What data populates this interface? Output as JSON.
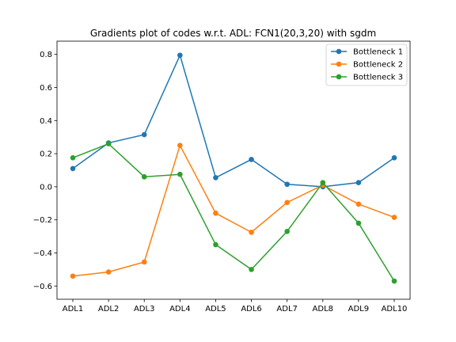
{
  "chart_data": {
    "type": "line",
    "title": "Gradients plot of codes w.r.t. ADL: FCN1(20,3,20) with sgdm",
    "xlabel": "",
    "ylabel": "",
    "categories": [
      "ADL1",
      "ADL2",
      "ADL3",
      "ADL4",
      "ADL5",
      "ADL6",
      "ADL7",
      "ADL8",
      "ADL9",
      "ADL10"
    ],
    "ylim": [
      -0.68,
      0.88
    ],
    "yticks": [
      -0.6,
      -0.4,
      -0.2,
      0.0,
      0.2,
      0.4,
      0.6,
      0.8
    ],
    "ytick_labels": [
      "−0.6",
      "−0.4",
      "−0.2",
      "0.0",
      "0.2",
      "0.4",
      "0.6",
      "0.8"
    ],
    "grid": false,
    "legend_position": "top-right",
    "series": [
      {
        "name": "Bottleneck 1",
        "color": "#1f77b4",
        "values": [
          0.11,
          0.265,
          0.315,
          0.795,
          0.055,
          0.165,
          0.015,
          0.0,
          0.025,
          0.175
        ]
      },
      {
        "name": "Bottleneck 2",
        "color": "#ff7f0e",
        "values": [
          -0.54,
          -0.515,
          -0.455,
          0.25,
          -0.16,
          -0.275,
          -0.095,
          0.01,
          -0.105,
          -0.185
        ]
      },
      {
        "name": "Bottleneck 3",
        "color": "#2ca02c",
        "values": [
          0.175,
          0.26,
          0.06,
          0.075,
          -0.35,
          -0.5,
          -0.27,
          0.025,
          -0.22,
          -0.57
        ]
      }
    ]
  }
}
